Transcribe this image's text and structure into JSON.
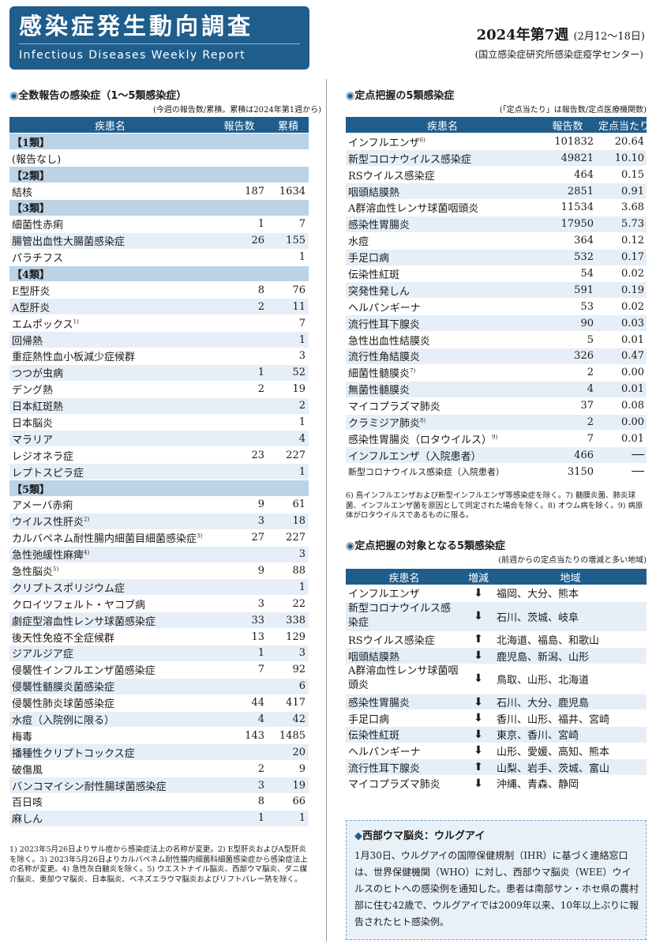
{
  "header": {
    "title": "感染症発生動向調査",
    "subtitle": "Infectious Diseases Weekly Report",
    "week": "2024年第7週",
    "range": "(2月12～18日)",
    "agency": "(国立感染症研究所感染症疫学センター)"
  },
  "left": {
    "title": "全数報告の感染症（1～5類感染症）",
    "note": "(今週の報告数/累積。累積は2024年第1週から)",
    "headers": [
      "疾患名",
      "報告数",
      "累積"
    ],
    "rows": [
      {
        "t": "cat",
        "name": "【1類】"
      },
      {
        "name": "(報告なし)"
      },
      {
        "t": "cat",
        "name": "【2類】"
      },
      {
        "name": "結核",
        "n": "187",
        "c": "1634"
      },
      {
        "t": "cat",
        "name": "【3類】"
      },
      {
        "name": "細菌性赤痢",
        "n": "1",
        "c": "7"
      },
      {
        "name": "腸管出血性大腸菌感染症",
        "n": "26",
        "c": "155"
      },
      {
        "name": "パラチフス",
        "c": "1"
      },
      {
        "t": "cat",
        "name": "【4類】"
      },
      {
        "name": "E型肝炎",
        "n": "8",
        "c": "76"
      },
      {
        "name": "A型肝炎",
        "n": "2",
        "c": "11"
      },
      {
        "name": "エムポックス",
        "sup": "1)",
        "c": "7"
      },
      {
        "name": "回帰熱",
        "c": "1"
      },
      {
        "name": "重症熱性血小板減少症候群",
        "c": "3"
      },
      {
        "name": "つつが虫病",
        "n": "1",
        "c": "52"
      },
      {
        "name": "デング熱",
        "n": "2",
        "c": "19"
      },
      {
        "name": "日本紅斑熱",
        "c": "2"
      },
      {
        "name": "日本脳炎",
        "c": "1"
      },
      {
        "name": "マラリア",
        "c": "4"
      },
      {
        "name": "レジオネラ症",
        "n": "23",
        "c": "227"
      },
      {
        "name": "レプトスピラ症",
        "c": "1"
      },
      {
        "t": "cat",
        "name": "【5類】"
      },
      {
        "name": "アメーバ赤痢",
        "n": "9",
        "c": "61"
      },
      {
        "name": "ウイルス性肝炎",
        "sup": "2)",
        "n": "3",
        "c": "18"
      },
      {
        "name": "カルバペネム耐性腸内細菌目細菌感染症",
        "sup": "3)",
        "n": "27",
        "c": "227"
      },
      {
        "name": "急性弛緩性麻痺",
        "sup": "4)",
        "c": "3"
      },
      {
        "name": "急性脳炎",
        "sup": "5)",
        "n": "9",
        "c": "88"
      },
      {
        "name": "クリプトスポリジウム症",
        "c": "1"
      },
      {
        "name": "クロイツフェルト・ヤコブ病",
        "n": "3",
        "c": "22"
      },
      {
        "name": "劇症型溶血性レンサ球菌感染症",
        "n": "33",
        "c": "338"
      },
      {
        "name": "後天性免疫不全症候群",
        "n": "13",
        "c": "129"
      },
      {
        "name": "ジアルジア症",
        "n": "1",
        "c": "3"
      },
      {
        "name": "侵襲性インフルエンザ菌感染症",
        "n": "7",
        "c": "92"
      },
      {
        "name": "侵襲性髄膜炎菌感染症",
        "c": "6"
      },
      {
        "name": "侵襲性肺炎球菌感染症",
        "n": "44",
        "c": "417"
      },
      {
        "name": "水痘（入院例に限る）",
        "n": "4",
        "c": "42"
      },
      {
        "name": "梅毒",
        "n": "143",
        "c": "1485"
      },
      {
        "name": "播種性クリプトコックス症",
        "c": "20"
      },
      {
        "name": "破傷風",
        "n": "2",
        "c": "9"
      },
      {
        "name": "バンコマイシン耐性腸球菌感染症",
        "n": "3",
        "c": "19"
      },
      {
        "name": "百日咳",
        "n": "8",
        "c": "66"
      },
      {
        "name": "麻しん",
        "n": "1",
        "c": "1"
      }
    ],
    "footnote": "1) 2023年5月26日よりサル痘から感染症法上の名称が変更。2) E型肝炎およびA型肝炎を除く。3) 2023年5月26日よりカルバペネム耐性腸内細菌科細菌感染症から感染症法上の名称が変更。4) 急性灰白髄炎を除く。5) ウエストナイル脳炎、西部ウマ脳炎、ダニ媒介脳炎、東部ウマ脳炎、日本脳炎、ベネズエラウマ脳炎およびリフトバレー熱を除く。"
  },
  "right1": {
    "title": "定点把握の5類感染症",
    "note": "(「定点当たり」は報告数/定点医療機関数)",
    "headers": [
      "疾患名",
      "報告数",
      "定点当たり"
    ],
    "rows": [
      {
        "name": "インフルエンザ",
        "sup": "6)",
        "n": "101832",
        "p": "20.64"
      },
      {
        "name": "新型コロナウイルス感染症",
        "n": "49821",
        "p": "10.10"
      },
      {
        "name": "RSウイルス感染症",
        "n": "464",
        "p": "0.15"
      },
      {
        "name": "咽頭結膜熱",
        "n": "2851",
        "p": "0.91"
      },
      {
        "name": "A群溶血性レンサ球菌咽頭炎",
        "n": "11534",
        "p": "3.68"
      },
      {
        "name": "感染性胃腸炎",
        "n": "17950",
        "p": "5.73"
      },
      {
        "name": "水痘",
        "n": "364",
        "p": "0.12"
      },
      {
        "name": "手足口病",
        "n": "532",
        "p": "0.17"
      },
      {
        "name": "伝染性紅斑",
        "n": "54",
        "p": "0.02"
      },
      {
        "name": "突発性発しん",
        "n": "591",
        "p": "0.19"
      },
      {
        "name": "ヘルパンギーナ",
        "n": "53",
        "p": "0.02"
      },
      {
        "name": "流行性耳下腺炎",
        "n": "90",
        "p": "0.03"
      },
      {
        "name": "急性出血性結膜炎",
        "n": "5",
        "p": "0.01"
      },
      {
        "name": "流行性角結膜炎",
        "n": "326",
        "p": "0.47"
      },
      {
        "name": "細菌性髄膜炎",
        "sup": "7)",
        "n": "2",
        "p": "0.00"
      },
      {
        "name": "無菌性髄膜炎",
        "n": "4",
        "p": "0.01"
      },
      {
        "name": "マイコプラズマ肺炎",
        "n": "37",
        "p": "0.08"
      },
      {
        "name": "クラミジア肺炎",
        "sup": "8)",
        "n": "2",
        "p": "0.00"
      },
      {
        "name": "感染性胃腸炎（ロタウイルス）",
        "sup": "9)",
        "n": "7",
        "p": "0.01"
      },
      {
        "name": "インフルエンザ（入院患者）",
        "n": "466",
        "p": "──"
      },
      {
        "name": "新型コロナウイルス感染症（入院患者）",
        "n": "3150",
        "p": "──"
      }
    ],
    "footnote": "6) 鳥インフルエンザおよび新型インフルエンザ等感染症を除く。7) 髄膜炎菌、肺炎球菌、インフルエンザ菌を原因として同定された場合を除く。8) オウム病を除く。9) 病原体がロタウイルスであるものに限る。"
  },
  "right2": {
    "title": "定点把握の対象となる5類感染症",
    "note": "(前週からの定点当たりの増減と多い地域)",
    "headers": [
      "疾患名",
      "増減",
      "地域"
    ],
    "rows": [
      {
        "name": "インフルエンザ",
        "dir": "down",
        "area": "福岡、大分、熊本"
      },
      {
        "name": "新型コロナウイルス感染症",
        "dir": "down",
        "area": "石川、茨城、岐阜",
        "two": true
      },
      {
        "name": "RSウイルス感染症",
        "dir": "up",
        "area": "北海道、福島、和歌山"
      },
      {
        "name": "咽頭結膜熱",
        "dir": "down",
        "area": "鹿児島、新潟、山形"
      },
      {
        "name": "A群溶血性レンサ球菌咽頭炎",
        "dir": "down",
        "area": "鳥取、山形、北海道",
        "two": true
      },
      {
        "name": "感染性胃腸炎",
        "dir": "down",
        "area": "石川、大分、鹿児島"
      },
      {
        "name": "手足口病",
        "dir": "down",
        "area": "香川、山形、福井、宮崎"
      },
      {
        "name": "伝染性紅斑",
        "dir": "down",
        "area": "東京、香川、宮崎"
      },
      {
        "name": "ヘルパンギーナ",
        "dir": "down",
        "area": "山形、愛媛、高知、熊本"
      },
      {
        "name": "流行性耳下腺炎",
        "dir": "up",
        "area": "山梨、岩手、茨城、富山"
      },
      {
        "name": "マイコプラズマ肺炎",
        "dir": "down",
        "area": "沖縄、青森、静岡"
      }
    ]
  },
  "box": {
    "title": "西部ウマ脳炎：ウルグアイ",
    "text": "1月30日、ウルグアイの国際保健規制（IHR）に基づく連絡窓口は、世界保健機関（WHO）に対し、西部ウマ脳炎（WEE）ウイルスのヒトへの感染例を通知した。患者は南部サン・ホセ県の農村部に住む42歳で、ウルグアイでは2009年以来、10年以上ぶりに報告されたヒト感染例。"
  }
}
